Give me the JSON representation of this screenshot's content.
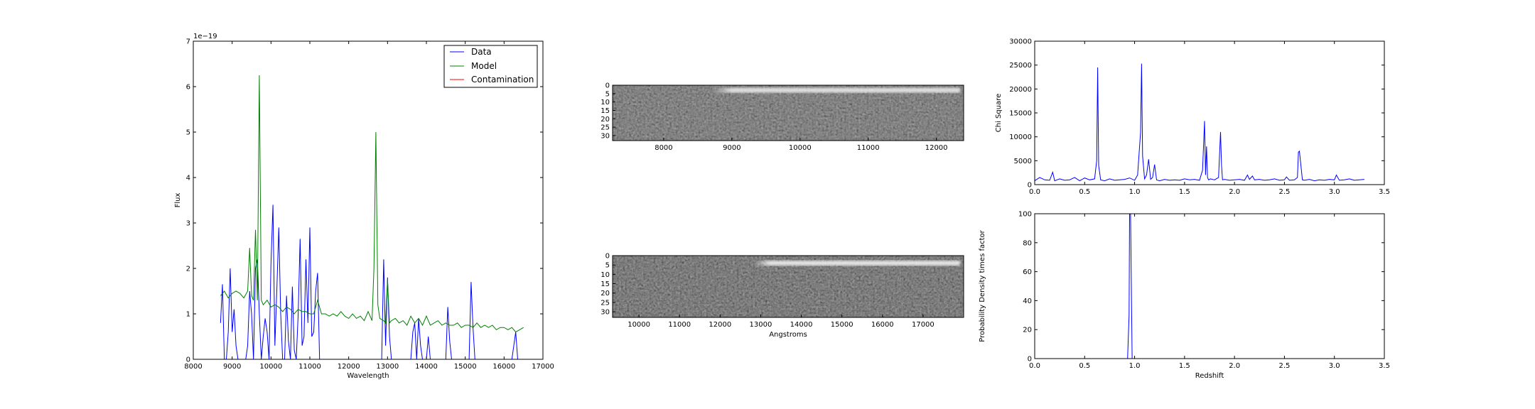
{
  "figure": {
    "background": "#ffffff"
  },
  "colors": {
    "data": "#0000ff",
    "model": "#008000",
    "contamination": "#ff0000",
    "axis": "#000000"
  },
  "chart_data": [
    {
      "id": "spectrum",
      "type": "line",
      "xlabel": "Wavelength",
      "ylabel": "Flux",
      "offset_text": "1e−19",
      "xlim": [
        8000,
        17000
      ],
      "ylim": [
        0,
        7
      ],
      "xticks": [
        8000,
        9000,
        10000,
        11000,
        12000,
        13000,
        14000,
        15000,
        16000,
        17000
      ],
      "yticks": [
        0,
        1,
        2,
        3,
        4,
        5,
        6,
        7
      ],
      "legend": {
        "position": "top-right",
        "entries": [
          "Data",
          "Model",
          "Contamination"
        ]
      },
      "series": [
        {
          "name": "Data",
          "color": "#0000ff",
          "x": [
            8700,
            8750,
            8800,
            8850,
            8900,
            8950,
            9000,
            9050,
            9100,
            9150,
            9200,
            9250,
            9300,
            9350,
            9400,
            9450,
            9500,
            9550,
            9600,
            9650,
            9700,
            9750,
            9800,
            9850,
            9900,
            9950,
            10000,
            10050,
            10100,
            10150,
            10200,
            10250,
            10300,
            10350,
            10400,
            10450,
            10500,
            10550,
            10600,
            10650,
            10700,
            10750,
            10800,
            10850,
            10900,
            10950,
            11000,
            11050,
            11100,
            11150,
            11200,
            11250,
            11300,
            11350,
            11400,
            11800,
            12200,
            12600,
            12800,
            12850,
            12900,
            12950,
            13000,
            13050,
            13100,
            13150,
            13200,
            13400,
            13600,
            13650,
            13700,
            13750,
            13800,
            13850,
            13900,
            13950,
            14000,
            14050,
            14100,
            14200,
            14400,
            14500,
            14550,
            14600,
            14650,
            14700,
            14800,
            15000,
            15100,
            15150,
            15200,
            15250,
            15300,
            15350,
            15400,
            15450,
            15500,
            15600,
            16000,
            16200,
            16250,
            16300,
            16350,
            16400
          ],
          "y": [
            0.8,
            1.65,
            0.0,
            0.0,
            0.6,
            2.0,
            0.6,
            1.1,
            0.3,
            0.0,
            0.0,
            0.0,
            0.0,
            0.0,
            0.3,
            1.5,
            1.0,
            0.0,
            2.0,
            2.2,
            1.0,
            0.0,
            0.5,
            0.9,
            0.6,
            0.0,
            2.1,
            3.4,
            0.3,
            1.5,
            2.9,
            1.0,
            0.0,
            0.0,
            1.4,
            0.4,
            0.0,
            1.6,
            0.2,
            0.0,
            1.0,
            2.65,
            0.3,
            0.5,
            2.2,
            0.8,
            2.9,
            0.5,
            0.6,
            1.5,
            1.9,
            0.0,
            0.0,
            0.0,
            0.0,
            0.0,
            0.0,
            0.0,
            0.0,
            0.0,
            2.2,
            0.3,
            1.8,
            0.5,
            0.0,
            0.0,
            0.0,
            0.0,
            0.0,
            0.6,
            0.8,
            0.0,
            0.9,
            0.3,
            0.0,
            0.0,
            0.0,
            0.5,
            0.0,
            0.0,
            0.0,
            0.0,
            1.15,
            0.4,
            0.0,
            0.0,
            0.0,
            0.0,
            0.0,
            1.7,
            0.7,
            0.0,
            0.0,
            0.0,
            0.0,
            0.0,
            0.0,
            0.0,
            0.0,
            0.0,
            0.3,
            0.6,
            0.0,
            0.0
          ]
        },
        {
          "name": "Model",
          "color": "#008000",
          "x": [
            8700,
            8800,
            8900,
            9000,
            9100,
            9200,
            9300,
            9400,
            9450,
            9500,
            9550,
            9600,
            9650,
            9700,
            9750,
            9800,
            9900,
            10000,
            10100,
            10200,
            10300,
            10400,
            10500,
            10600,
            10700,
            10800,
            10900,
            11000,
            11100,
            11200,
            11300,
            11400,
            11500,
            11600,
            11700,
            11800,
            11900,
            12000,
            12100,
            12200,
            12300,
            12400,
            12500,
            12600,
            12650,
            12700,
            12750,
            12800,
            12900,
            12950,
            13000,
            13050,
            13100,
            13200,
            13300,
            13400,
            13500,
            13600,
            13700,
            13800,
            13900,
            14000,
            14100,
            14200,
            14300,
            14400,
            14500,
            14600,
            14700,
            14800,
            14900,
            15000,
            15100,
            15200,
            15300,
            15400,
            15500,
            15600,
            15700,
            15800,
            15900,
            16000,
            16100,
            16200,
            16300,
            16400,
            16500
          ],
          "y": [
            1.4,
            1.5,
            1.35,
            1.45,
            1.5,
            1.45,
            1.35,
            1.5,
            2.45,
            1.4,
            1.3,
            2.85,
            1.3,
            6.25,
            1.3,
            1.2,
            1.3,
            1.15,
            1.2,
            1.15,
            1.05,
            1.15,
            1.1,
            1.0,
            1.1,
            1.05,
            1.05,
            1.0,
            1.0,
            1.3,
            1.0,
            1.0,
            0.95,
            1.0,
            0.95,
            1.05,
            0.95,
            0.9,
            1.0,
            0.9,
            0.95,
            0.85,
            1.05,
            0.85,
            2.0,
            5.0,
            1.2,
            0.9,
            0.85,
            0.8,
            1.75,
            0.8,
            0.85,
            0.9,
            0.8,
            0.85,
            0.75,
            0.95,
            0.8,
            0.9,
            0.75,
            0.95,
            0.75,
            0.8,
            0.85,
            0.75,
            0.8,
            0.75,
            0.75,
            0.8,
            0.7,
            0.75,
            0.75,
            0.7,
            0.8,
            0.7,
            0.75,
            0.7,
            0.75,
            0.65,
            0.7,
            0.7,
            0.65,
            0.7,
            0.6,
            0.65,
            0.7
          ]
        },
        {
          "name": "Contamination",
          "color": "#ff0000",
          "x": [
            8700,
            16500
          ],
          "y": [
            0,
            0
          ]
        }
      ]
    },
    {
      "id": "image-top",
      "type": "heatmap",
      "colormap": "gray",
      "xlim": [
        7250,
        12400
      ],
      "ylim": [
        33,
        0
      ],
      "xticks": [
        8000,
        9000,
        10000,
        11000,
        12000
      ],
      "yticks": [
        0,
        5,
        10,
        15,
        20,
        25,
        30
      ],
      "trace": {
        "row": 3,
        "start_x": 8700,
        "brightness": 0.85
      }
    },
    {
      "id": "image-bottom",
      "type": "heatmap",
      "colormap": "gray",
      "xlabel": "Angstroms",
      "xlim": [
        9350,
        18000
      ],
      "ylim": [
        33,
        0
      ],
      "xticks": [
        10000,
        11000,
        12000,
        13000,
        14000,
        15000,
        16000,
        17000
      ],
      "yticks": [
        0,
        5,
        10,
        15,
        20,
        25,
        30
      ],
      "trace": {
        "row": 4,
        "start_x": 12800,
        "brightness": 0.9
      }
    },
    {
      "id": "chi-square",
      "type": "line",
      "ylabel": "Chi Square",
      "xlim": [
        0.0,
        3.5
      ],
      "ylim": [
        0,
        30000
      ],
      "xticks": [
        0.0,
        0.5,
        1.0,
        1.5,
        2.0,
        2.5,
        3.0,
        3.5
      ],
      "yticks": [
        0,
        5000,
        10000,
        15000,
        20000,
        25000,
        30000
      ],
      "series": [
        {
          "color": "#0000ff",
          "x": [
            0.0,
            0.05,
            0.1,
            0.15,
            0.18,
            0.2,
            0.25,
            0.3,
            0.35,
            0.4,
            0.45,
            0.5,
            0.55,
            0.6,
            0.62,
            0.63,
            0.64,
            0.66,
            0.7,
            0.75,
            0.8,
            0.85,
            0.9,
            0.95,
            1.0,
            1.03,
            1.06,
            1.07,
            1.08,
            1.1,
            1.12,
            1.14,
            1.16,
            1.18,
            1.2,
            1.22,
            1.25,
            1.3,
            1.35,
            1.4,
            1.45,
            1.5,
            1.55,
            1.6,
            1.65,
            1.68,
            1.7,
            1.71,
            1.72,
            1.73,
            1.74,
            1.76,
            1.8,
            1.84,
            1.86,
            1.87,
            1.88,
            1.9,
            1.95,
            2.0,
            2.05,
            2.1,
            2.13,
            2.15,
            2.18,
            2.2,
            2.25,
            2.3,
            2.35,
            2.4,
            2.45,
            2.5,
            2.52,
            2.55,
            2.6,
            2.63,
            2.64,
            2.65,
            2.66,
            2.68,
            2.7,
            2.75,
            2.8,
            2.85,
            2.9,
            2.95,
            3.0,
            3.02,
            3.05,
            3.1,
            3.15,
            3.2,
            3.25,
            3.3
          ],
          "y": [
            800,
            1500,
            1000,
            900,
            2600,
            800,
            1200,
            900,
            1000,
            1500,
            800,
            1400,
            1000,
            1200,
            5000,
            24500,
            4000,
            1000,
            800,
            1200,
            900,
            1000,
            1100,
            1400,
            900,
            2000,
            11000,
            25300,
            6000,
            1200,
            2000,
            5300,
            1100,
            1500,
            4200,
            1000,
            800,
            1100,
            900,
            1000,
            900,
            1200,
            1000,
            1100,
            900,
            3000,
            13300,
            2000,
            8000,
            1500,
            1000,
            1200,
            1000,
            1500,
            11000,
            4000,
            1000,
            1100,
            900,
            1000,
            1100,
            900,
            2000,
            1100,
            1800,
            1000,
            1100,
            900,
            1000,
            1200,
            900,
            1000,
            1600,
            900,
            1000,
            1500,
            6800,
            7000,
            5000,
            1000,
            900,
            1100,
            800,
            1000,
            900,
            1100,
            1000,
            2000,
            900,
            1000,
            1200,
            900,
            1000,
            1100
          ]
        }
      ]
    },
    {
      "id": "probability",
      "type": "line",
      "xlabel": "Redshift",
      "ylabel": "Probability Density times factor",
      "xlim": [
        0.0,
        3.5
      ],
      "ylim": [
        0,
        100
      ],
      "xticks": [
        0.0,
        0.5,
        1.0,
        1.5,
        2.0,
        2.5,
        3.0,
        3.5
      ],
      "yticks": [
        0,
        20,
        40,
        60,
        80,
        100
      ],
      "series": [
        {
          "color": "#0000ff",
          "x": [
            0.0,
            0.9,
            0.93,
            0.945,
            0.95,
            0.96,
            0.975,
            1.0,
            3.3
          ],
          "y": [
            0,
            0,
            0,
            30,
            100,
            100,
            0,
            0,
            0
          ]
        }
      ]
    }
  ]
}
